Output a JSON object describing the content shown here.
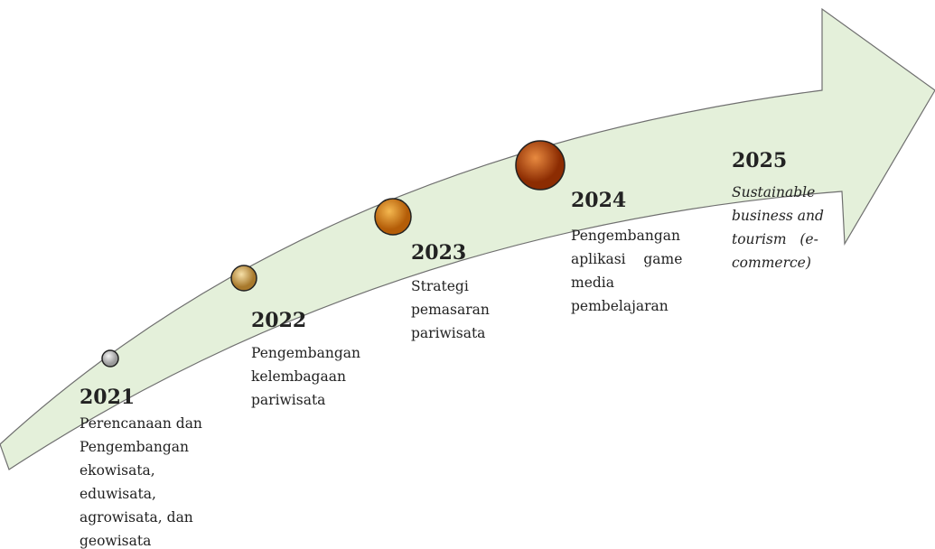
{
  "milestones": [
    {
      "year": "2021",
      "lines": [
        "Perencanaan dan",
        "Pengembangan",
        "ekowisata,",
        "eduwisata,",
        "agrowisata, dan",
        "geowisata"
      ]
    },
    {
      "year": "2022",
      "lines": [
        "Pengembangan",
        "kelembagaan",
        "pariwisata"
      ]
    },
    {
      "year": "2023",
      "lines": [
        "Strategi",
        "pemasaran",
        "pariwisata"
      ]
    },
    {
      "year": "2024",
      "lines": [
        "Pengembangan",
        "aplikasi    game",
        "media",
        "pembelajaran"
      ]
    },
    {
      "year": "2025",
      "lines": [
        "Sustainable",
        "business and",
        "tourism   (e-",
        "commerce)"
      ]
    }
  ]
}
